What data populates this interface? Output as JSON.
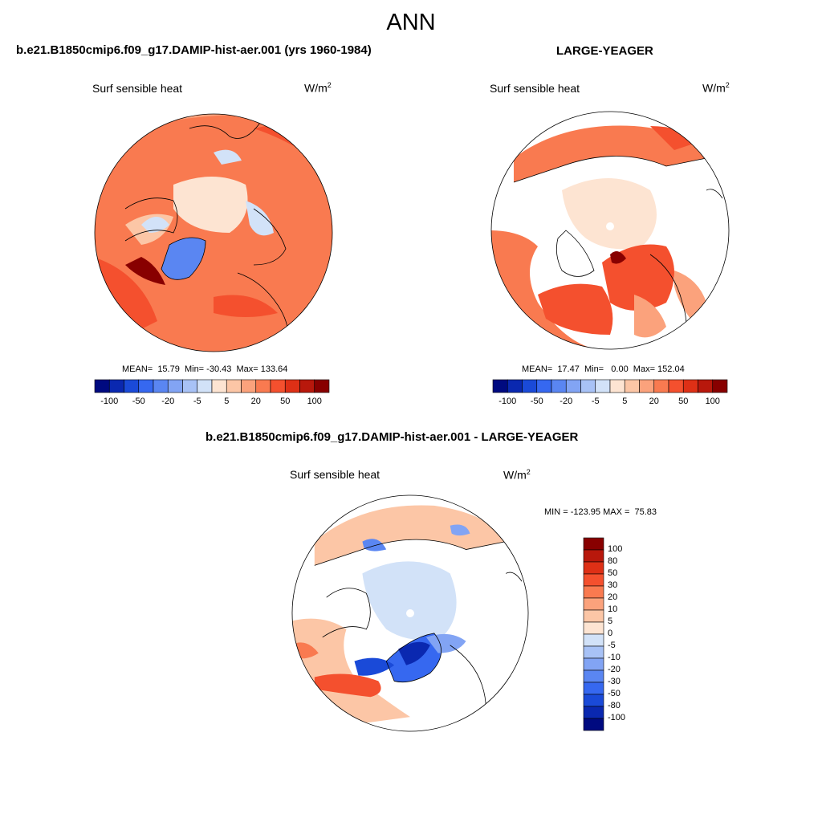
{
  "figure": {
    "season": "ANN"
  },
  "panels": [
    {
      "title": "b.e21.B1850cmip6.f09_g17.DAMIP-hist-aer.001 (yrs 1960-1984)",
      "variable": "Surf sensible heat",
      "units": "W/m",
      "units_sup": "2",
      "stats": "MEAN=  15.79  Min= -30.43  Max= 133.64",
      "mean": 15.79,
      "min": -30.43,
      "max": 133.64
    },
    {
      "title": "LARGE-YEAGER",
      "variable": "Surf sensible heat",
      "units": "W/m",
      "units_sup": "2",
      "stats": "MEAN=  17.47  Min=   0.00  Max= 152.04",
      "mean": 17.47,
      "min": 0.0,
      "max": 152.04
    },
    {
      "title": "b.e21.B1850cmip6.f09_g17.DAMIP-hist-aer.001 - LARGE-YEAGER",
      "variable": "Surf sensible heat",
      "units": "W/m",
      "units_sup": "2",
      "stats": "MIN = -123.95 MAX =  75.83",
      "min": -123.95,
      "max": 75.83
    }
  ],
  "colorbar_top": {
    "levels": [
      -100,
      -80,
      -50,
      -30,
      -20,
      -10,
      -5,
      0,
      5,
      10,
      20,
      30,
      50,
      80,
      100
    ],
    "tick_labels": [
      "-100",
      "-50",
      "-20",
      "-5",
      "5",
      "20",
      "50",
      "100"
    ],
    "colors": [
      "#000a80",
      "#0a28b0",
      "#1a4ad8",
      "#3668f0",
      "#5a86f2",
      "#82a4f4",
      "#a8c2f6",
      "#d2e2f8",
      "#fde4d2",
      "#fcc6a6",
      "#fba27c",
      "#f97a50",
      "#f4502e",
      "#de3016",
      "#b8180c",
      "#880000"
    ]
  },
  "colorbar_diff": {
    "levels": [
      -100,
      -80,
      -50,
      -30,
      -20,
      -10,
      -5,
      0,
      5,
      10,
      20,
      30,
      50,
      80,
      100
    ],
    "tick_labels": [
      "100",
      "80",
      "50",
      "30",
      "20",
      "10",
      "5",
      "0",
      "-5",
      "-10",
      "-20",
      "-30",
      "-50",
      "-80",
      "-100"
    ],
    "colors": [
      "#880000",
      "#b8180c",
      "#de3016",
      "#f4502e",
      "#f97a50",
      "#fba27c",
      "#fcc6a6",
      "#fde4d2",
      "#d2e2f8",
      "#a8c2f6",
      "#82a4f4",
      "#5a86f2",
      "#3668f0",
      "#1a4ad8",
      "#0a28b0",
      "#000a80"
    ]
  }
}
